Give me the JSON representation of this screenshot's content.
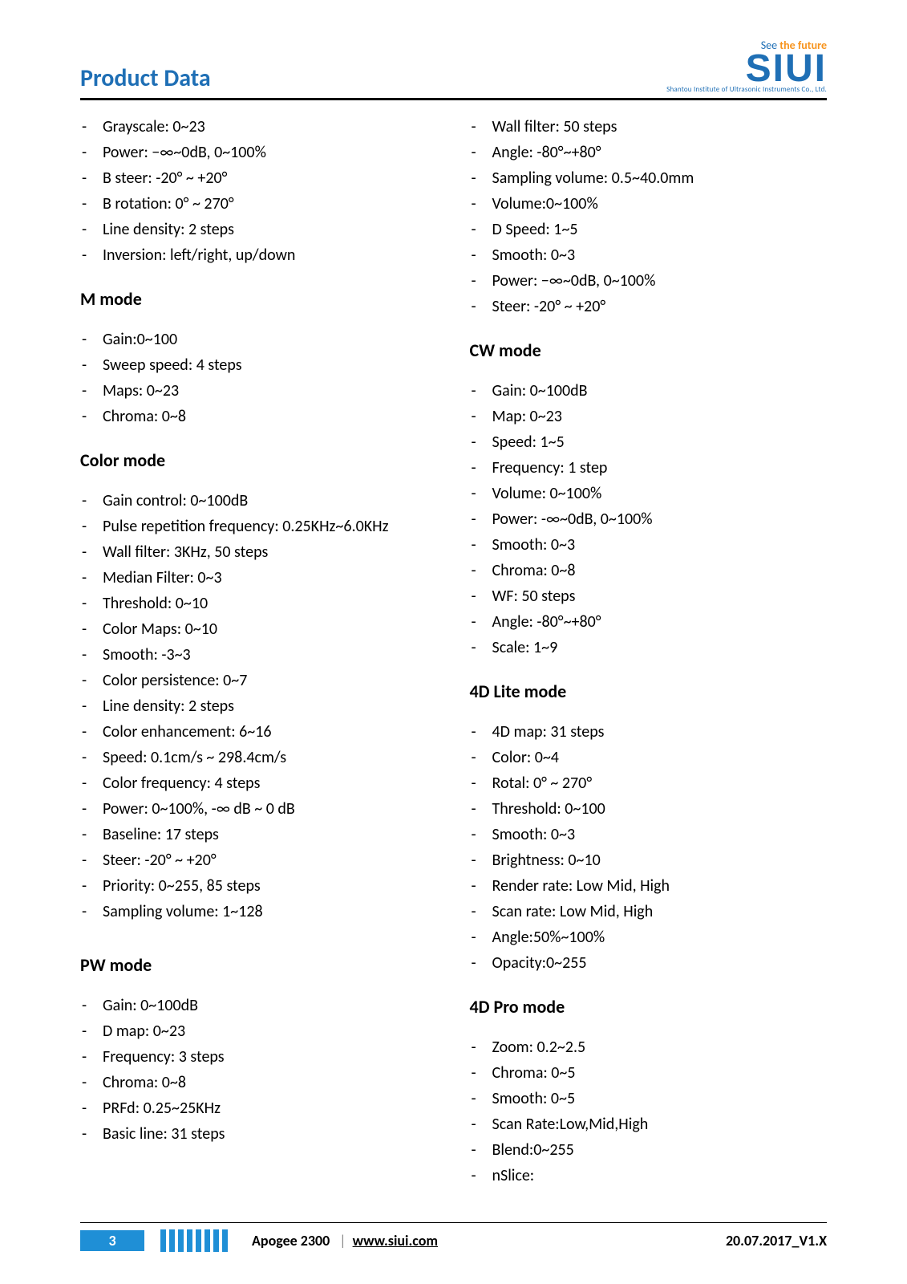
{
  "header": {
    "title": "Product Data",
    "tagline_pre": "See",
    "tagline_post": " the future",
    "logo_text": "SIUI",
    "subbrand": "Shantou Institute of Ultrasonic Instruments Co., Ltd.",
    "title_color": "#1f6fb5"
  },
  "columns": {
    "left": [
      {
        "heading": null,
        "items": [
          "Grayscale: 0~23",
          "Power: −∞~0dB, 0~100%",
          "B steer: -20° ~ +20°",
          "B rotation: 0° ~ 270°",
          "Line density: 2 steps",
          "Inversion: left/right, up/down"
        ]
      },
      {
        "heading": "M mode",
        "items": [
          "Gain:0~100",
          "Sweep speed: 4 steps",
          "Maps: 0~23",
          "Chroma: 0~8"
        ]
      },
      {
        "heading": "Color mode",
        "items": [
          "Gain control: 0~100dB",
          "Pulse repetition frequency: 0.25KHz~6.0KHz",
          "Wall filter: 3KHz, 50 steps",
          "Median Filter: 0~3",
          "Threshold: 0~10",
          "Color Maps: 0~10",
          "Smooth: -3~3",
          "Color persistence: 0~7",
          "Line density: 2 steps",
          "Color enhancement: 6~16",
          "Speed: 0.1cm/s ~ 298.4cm/s",
          "Color frequency: 4 steps",
          "Power: 0~100%, -∞ dB ~ 0 dB",
          "Baseline: 17 steps",
          "Steer: -20° ~ +20°",
          "Priority: 0~255, 85 steps",
          "Sampling volume: 1~128"
        ]
      },
      {
        "heading": "PW mode",
        "heading_tight": true,
        "items": [
          "Gain: 0~100dB",
          "D map: 0~23",
          "Frequency: 3 steps",
          "Chroma: 0~8",
          "PRFd: 0.25~25KHz",
          "Basic line: 31 steps"
        ]
      }
    ],
    "right": [
      {
        "heading": null,
        "items": [
          "Wall filter: 50 steps",
          "Angle: -80°~+80°",
          "Sampling volume: 0.5~40.0mm",
          "Volume:0~100%",
          "D Speed: 1~5",
          "Smooth: 0~3",
          "Power: −∞~0dB, 0~100%",
          "Steer: -20° ~ +20°"
        ]
      },
      {
        "heading": "CW mode",
        "items": [
          "Gain: 0~100dB",
          "Map: 0~23",
          "Speed: 1~5",
          "Frequency: 1 step",
          "Volume: 0~100%",
          "Power: -∞~0dB, 0~100%",
          "Smooth: 0~3",
          "Chroma: 0~8",
          "WF: 50 steps",
          "Angle: -80°~+80°",
          "Scale: 1~9"
        ]
      },
      {
        "heading": "4D Lite mode",
        "items": [
          "4D map: 31 steps",
          "Color: 0~4",
          "Rotal: 0° ~ 270°",
          "Threshold: 0~100",
          "Smooth: 0~3",
          "Brightness: 0~10",
          "Render rate: Low Mid, High",
          "Scan rate: Low Mid, High",
          "Angle:50%~100%",
          "Opacity:0~255"
        ]
      },
      {
        "heading": "4D Pro mode",
        "items": [
          "Zoom: 0.2~2.5",
          "Chroma: 0~5",
          "Smooth: 0~5",
          "Scan Rate:Low,Mid,High",
          "Blend:0~255",
          "nSlice:"
        ]
      }
    ]
  },
  "footer": {
    "page_number": "3",
    "product": "Apogee 2300",
    "url": "www.siui.com",
    "version": "20.07.2017_V1.X",
    "bar_count": 8,
    "bar_color": "#1f8fd6"
  }
}
